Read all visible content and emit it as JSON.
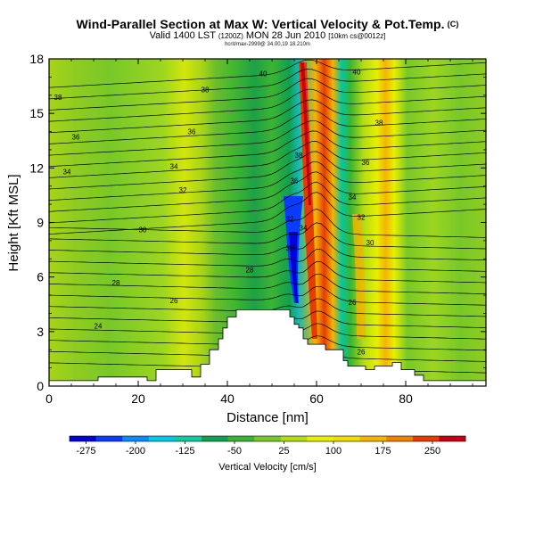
{
  "header": {
    "title": "Wind-Parallel Section at Max W: Vertical Velocity & Pot.Temp.",
    "title_units": "(C)",
    "subtitle_main": "Valid 1400 LST",
    "subtitle_z": "(1200Z)",
    "subtitle_date": "MON 28 Jun 2010",
    "subtitle_res": "[10km cs@0012z]",
    "meta": "hcrit/max-2999@ 34.00,19 18.210m"
  },
  "colors": {
    "scale": [
      "#0000d8",
      "#0a3cff",
      "#0a8cff",
      "#00c8e6",
      "#14c8a0",
      "#0fa050",
      "#3cb432",
      "#78c828",
      "#b4dc14",
      "#e6f000",
      "#f0dc00",
      "#f5b400",
      "#f08200",
      "#e63c00",
      "#c80014"
    ],
    "terrain": "#ffffff",
    "contour": "#000000"
  },
  "chart_data": {
    "type": "heatmap",
    "title": "Wind-Parallel Section at Max W: Vertical Velocity & Pot.Temp.",
    "xlabel": "Distance [nm]",
    "ylabel": "Height [Kft MSL]",
    "xlim": [
      0,
      98
    ],
    "ylim": [
      0,
      18
    ],
    "xticks": [
      "0",
      "20",
      "40",
      "60",
      "80"
    ],
    "yticks": [
      "0",
      "3",
      "6",
      "9",
      "12",
      "15",
      "18"
    ],
    "colorbar": {
      "title": "Vertical Velocity [cm/s]",
      "range": [
        -300,
        300
      ],
      "ticks": [
        "-275",
        "-200",
        "-125",
        "-50",
        "25",
        "100",
        "175",
        "250"
      ]
    },
    "terrain_profile": [
      [
        0,
        0.3
      ],
      [
        11,
        0.3
      ],
      [
        11,
        0.5
      ],
      [
        22,
        0.5
      ],
      [
        22,
        0.3
      ],
      [
        24,
        0.3
      ],
      [
        24,
        0.9
      ],
      [
        32,
        0.9
      ],
      [
        32,
        0.5
      ],
      [
        34,
        0.5
      ],
      [
        34,
        1.2
      ],
      [
        36,
        1.2
      ],
      [
        36,
        2.0
      ],
      [
        38,
        2.0
      ],
      [
        38,
        2.6
      ],
      [
        39,
        2.6
      ],
      [
        39,
        3.2
      ],
      [
        40,
        3.2
      ],
      [
        40,
        3.8
      ],
      [
        42,
        3.8
      ],
      [
        42,
        4.2
      ],
      [
        54,
        4.2
      ],
      [
        54,
        3.8
      ],
      [
        55,
        3.8
      ],
      [
        55,
        3.4
      ],
      [
        56,
        3.4
      ],
      [
        56,
        3.2
      ],
      [
        57,
        3.2
      ],
      [
        57,
        2.6
      ],
      [
        58,
        2.6
      ],
      [
        58,
        2.3
      ],
      [
        62,
        2.3
      ],
      [
        62,
        2.0
      ],
      [
        66,
        2.0
      ],
      [
        66,
        1.4
      ],
      [
        67,
        1.4
      ],
      [
        67,
        1.1
      ],
      [
        71,
        1.1
      ],
      [
        71,
        0.9
      ],
      [
        73,
        0.9
      ],
      [
        73,
        1.1
      ],
      [
        77,
        1.1
      ],
      [
        77,
        1.3
      ],
      [
        79,
        1.3
      ],
      [
        79,
        0.9
      ],
      [
        82,
        0.9
      ],
      [
        82,
        0.6
      ],
      [
        84,
        0.6
      ],
      [
        84,
        0.3
      ],
      [
        98,
        0.3
      ]
    ],
    "contour_labels": [
      {
        "x": 2,
        "y": 15.9,
        "text": "38"
      },
      {
        "x": 6,
        "y": 13.7,
        "text": "36"
      },
      {
        "x": 4,
        "y": 11.8,
        "text": "34"
      },
      {
        "x": 21,
        "y": 8.6,
        "text": "30"
      },
      {
        "x": 15,
        "y": 5.7,
        "text": "28"
      },
      {
        "x": 11,
        "y": 3.3,
        "text": "24"
      },
      {
        "x": 35,
        "y": 16.3,
        "text": "38"
      },
      {
        "x": 32,
        "y": 14.0,
        "text": "36"
      },
      {
        "x": 28,
        "y": 12.1,
        "text": "34"
      },
      {
        "x": 30,
        "y": 10.8,
        "text": "32"
      },
      {
        "x": 28,
        "y": 4.7,
        "text": "26"
      },
      {
        "x": 45,
        "y": 6.4,
        "text": "28"
      },
      {
        "x": 48,
        "y": 17.2,
        "text": "40"
      },
      {
        "x": 56,
        "y": 12.7,
        "text": "38"
      },
      {
        "x": 55,
        "y": 11.3,
        "text": "36"
      },
      {
        "x": 54,
        "y": 9.2,
        "text": "32"
      },
      {
        "x": 57,
        "y": 8.7,
        "text": "34"
      },
      {
        "x": 54,
        "y": 7.6,
        "text": "30"
      },
      {
        "x": 69,
        "y": 17.3,
        "text": "40"
      },
      {
        "x": 74,
        "y": 14.5,
        "text": "38"
      },
      {
        "x": 71,
        "y": 12.3,
        "text": "36"
      },
      {
        "x": 68,
        "y": 10.4,
        "text": "34"
      },
      {
        "x": 70,
        "y": 9.3,
        "text": "32"
      },
      {
        "x": 72,
        "y": 7.9,
        "text": "30"
      },
      {
        "x": 68,
        "y": 4.6,
        "text": "26"
      },
      {
        "x": 70,
        "y": 1.9,
        "text": "26"
      }
    ]
  }
}
